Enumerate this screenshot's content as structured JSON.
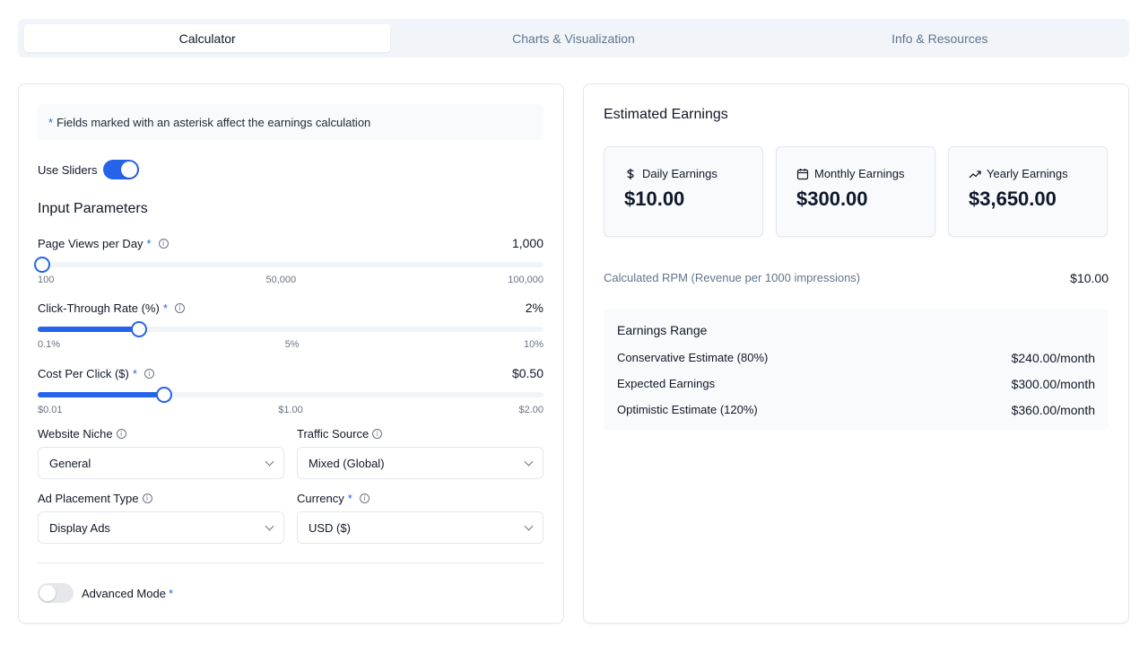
{
  "tabs": [
    {
      "label": "Calculator",
      "active": true
    },
    {
      "label": "Charts & Visualization",
      "active": false
    },
    {
      "label": "Info & Resources",
      "active": false
    }
  ],
  "note": {
    "asterisk": "*",
    "text": "Fields marked with an asterisk affect the earnings calculation"
  },
  "use_sliders": {
    "label": "Use Sliders",
    "on": true
  },
  "input_title": "Input Parameters",
  "params": [
    {
      "label": "Page Views per Day",
      "required": "*",
      "value": "1,000",
      "fraction": 0.009,
      "ticks": [
        "100",
        "50,000",
        "100,000"
      ]
    },
    {
      "label": "Click-Through Rate (%)",
      "required": "*",
      "value": "2%",
      "fraction": 0.2,
      "ticks": [
        "0.1%",
        "5%",
        "10%"
      ]
    },
    {
      "label": "Cost Per Click ($)",
      "required": "*",
      "value": "$0.50",
      "fraction": 0.25,
      "ticks": [
        "$0.01",
        "$1.00",
        "$2.00"
      ]
    }
  ],
  "fields": {
    "niche": {
      "label": "Website Niche",
      "value": "General"
    },
    "traffic": {
      "label": "Traffic Source",
      "value": "Mixed (Global)"
    },
    "placement": {
      "label": "Ad Placement Type",
      "value": "Display Ads"
    },
    "currency": {
      "label": "Currency",
      "required": "*",
      "value": "USD ($)"
    }
  },
  "advanced": {
    "label": "Advanced Mode",
    "required": "*",
    "on": false
  },
  "estimates": {
    "title": "Estimated Earnings",
    "daily": {
      "label": "Daily Earnings",
      "value": "$10.00",
      "icon": "dollar-icon"
    },
    "monthly": {
      "label": "Monthly Earnings",
      "value": "$300.00",
      "icon": "calendar-icon"
    },
    "yearly": {
      "label": "Yearly Earnings",
      "value": "$3,650.00",
      "icon": "trending-up-icon"
    }
  },
  "rpm": {
    "label": "Calculated RPM (Revenue per 1000 impressions)",
    "value": "$10.00"
  },
  "range": {
    "title": "Earnings Range",
    "rows": [
      {
        "label": "Conservative Estimate (80%)",
        "value": "$240.00/month"
      },
      {
        "label": "Expected Earnings",
        "value": "$300.00/month"
      },
      {
        "label": "Optimistic Estimate (120%)",
        "value": "$360.00/month"
      }
    ]
  },
  "colors": {
    "accent": "#2563eb",
    "muted": "#64748b"
  }
}
